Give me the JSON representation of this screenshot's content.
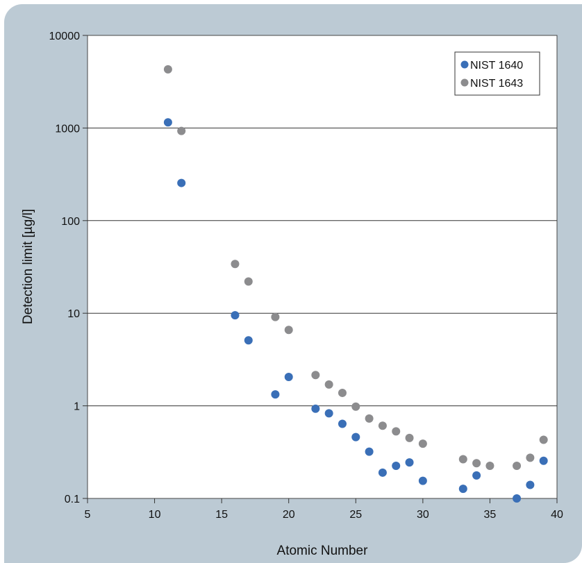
{
  "chart_data": {
    "type": "scatter",
    "xlabel": "Atomic Number",
    "ylabel": "Detection limit [µg/l]",
    "xlim": [
      5,
      40
    ],
    "ylim": [
      0.1,
      10000
    ],
    "yscale": "log",
    "x_ticks": [
      "5",
      "10",
      "15",
      "20",
      "25",
      "30",
      "35",
      "40"
    ],
    "y_ticks": [
      "0.1",
      "1",
      "10",
      "100",
      "1000",
      "10000"
    ],
    "grid": "horizontal",
    "legend_position": "top-right",
    "series": [
      {
        "name": "NIST 1640",
        "color": "#3a6fb7",
        "points": [
          [
            11,
            1150
          ],
          [
            12,
            255
          ],
          [
            16,
            9.5
          ],
          [
            17,
            5.1
          ],
          [
            19,
            1.33
          ],
          [
            20,
            2.05
          ],
          [
            22,
            0.93
          ],
          [
            23,
            0.83
          ],
          [
            24,
            0.64
          ],
          [
            25,
            0.46
          ],
          [
            26,
            0.32
          ],
          [
            27,
            0.19
          ],
          [
            28,
            0.225
          ],
          [
            29,
            0.245
          ],
          [
            30,
            0.155
          ],
          [
            33,
            0.127
          ],
          [
            34,
            0.177
          ],
          [
            37,
            0.1
          ],
          [
            38,
            0.14
          ],
          [
            39,
            0.255
          ]
        ]
      },
      {
        "name": "NIST 1643",
        "color": "#8c8c8e",
        "points": [
          [
            11,
            4300
          ],
          [
            12,
            930
          ],
          [
            16,
            34
          ],
          [
            17,
            22
          ],
          [
            19,
            9.1
          ],
          [
            20,
            6.6
          ],
          [
            22,
            2.15
          ],
          [
            23,
            1.7
          ],
          [
            24,
            1.38
          ],
          [
            25,
            0.98
          ],
          [
            26,
            0.73
          ],
          [
            27,
            0.61
          ],
          [
            28,
            0.53
          ],
          [
            29,
            0.45
          ],
          [
            30,
            0.39
          ],
          [
            33,
            0.265
          ],
          [
            34,
            0.24
          ],
          [
            35,
            0.225
          ],
          [
            37,
            0.225
          ],
          [
            38,
            0.275
          ],
          [
            39,
            0.43
          ]
        ]
      }
    ]
  }
}
